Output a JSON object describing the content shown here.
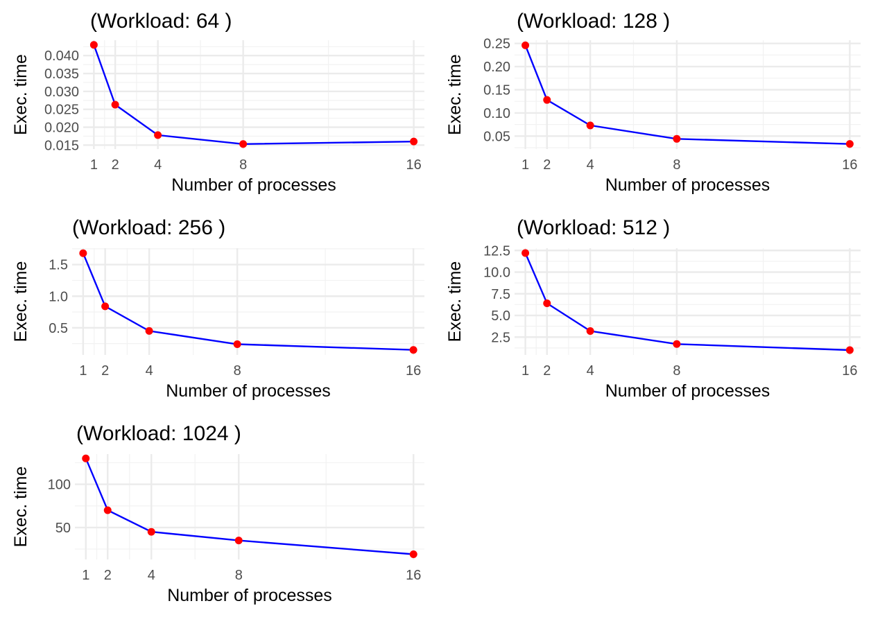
{
  "chart_data": [
    {
      "type": "line",
      "title": "(Workload: 64 )",
      "xlabel": "Number of processes",
      "ylabel": "Exec. time",
      "x": [
        1,
        2,
        4,
        8,
        16
      ],
      "series": [
        {
          "values": [
            0.043,
            0.0263,
            0.0178,
            0.0153,
            0.016
          ]
        }
      ],
      "x_ticks": [
        1,
        2,
        4,
        8,
        16
      ],
      "y_ticks": [
        0.015,
        0.02,
        0.025,
        0.03,
        0.035,
        0.04
      ],
      "y_tick_labels": [
        "0.015",
        "0.020",
        "0.025",
        "0.030",
        "0.035",
        "0.040"
      ],
      "xlim": [
        0.5,
        16.5
      ],
      "ylim": [
        0.0139,
        0.0443
      ],
      "grid": true
    },
    {
      "type": "line",
      "title": "(Workload: 128 )",
      "xlabel": "Number of processes",
      "ylabel": "Exec. time",
      "x": [
        1,
        2,
        4,
        8,
        16
      ],
      "series": [
        {
          "values": [
            0.246,
            0.128,
            0.073,
            0.044,
            0.033
          ]
        }
      ],
      "x_ticks": [
        1,
        2,
        4,
        8,
        16
      ],
      "y_ticks": [
        0.05,
        0.1,
        0.15,
        0.2,
        0.25
      ],
      "y_tick_labels": [
        "0.05",
        "0.10",
        "0.15",
        "0.20",
        "0.25"
      ],
      "xlim": [
        0.5,
        16.5
      ],
      "ylim": [
        0.022,
        0.257
      ],
      "grid": true
    },
    {
      "type": "line",
      "title": "(Workload: 256 )",
      "xlabel": "Number of processes",
      "ylabel": "Exec. time",
      "x": [
        1,
        2,
        4,
        8,
        16
      ],
      "series": [
        {
          "values": [
            1.68,
            0.84,
            0.45,
            0.24,
            0.15
          ]
        }
      ],
      "x_ticks": [
        1,
        2,
        4,
        8,
        16
      ],
      "y_ticks": [
        0.5,
        1.0,
        1.5
      ],
      "y_tick_labels": [
        "0.5",
        "1.0",
        "1.5"
      ],
      "xlim": [
        0.5,
        16.5
      ],
      "ylim": [
        0.07,
        1.76
      ],
      "grid": true
    },
    {
      "type": "line",
      "title": "(Workload: 512 )",
      "xlabel": "Number of processes",
      "ylabel": "Exec. time",
      "x": [
        1,
        2,
        4,
        8,
        16
      ],
      "series": [
        {
          "values": [
            12.2,
            6.4,
            3.2,
            1.7,
            1.0
          ]
        }
      ],
      "x_ticks": [
        1,
        2,
        4,
        8,
        16
      ],
      "y_ticks": [
        2.5,
        5.0,
        7.5,
        10.0,
        12.5
      ],
      "y_tick_labels": [
        "2.5",
        "5.0",
        "7.5",
        "10.0",
        "12.5"
      ],
      "xlim": [
        0.5,
        16.5
      ],
      "ylim": [
        0.44,
        12.76
      ],
      "grid": true
    },
    {
      "type": "line",
      "title": "(Workload: 1024 )",
      "xlabel": "Number of processes",
      "ylabel": "Exec. time",
      "x": [
        1,
        2,
        4,
        8,
        16
      ],
      "series": [
        {
          "values": [
            130,
            70,
            45,
            35,
            19
          ]
        }
      ],
      "x_ticks": [
        1,
        2,
        4,
        8,
        16
      ],
      "y_ticks": [
        50,
        100
      ],
      "y_tick_labels": [
        "50",
        "100"
      ],
      "xlim": [
        0.5,
        16.5
      ],
      "ylim": [
        13,
        135
      ],
      "grid": true
    }
  ]
}
